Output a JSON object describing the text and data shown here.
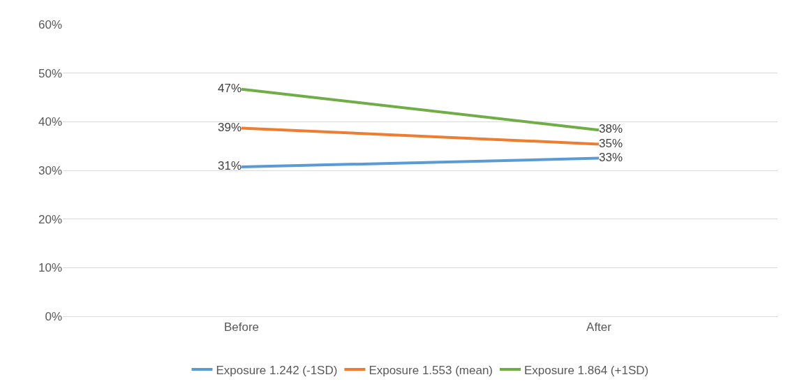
{
  "chart_data": {
    "type": "line",
    "categories": [
      "Before",
      "After"
    ],
    "series": [
      {
        "name": "Exposure 1.242 (-1SD)",
        "color": "#5b9bd5",
        "values": [
          30.7,
          32.5
        ],
        "value_labels": [
          "31%",
          "33%"
        ]
      },
      {
        "name": "Exposure 1.553 (mean)",
        "color": "#ed7d31",
        "values": [
          38.7,
          35.4
        ],
        "value_labels": [
          "39%",
          "35%"
        ]
      },
      {
        "name": "Exposure 1.864 (+1SD)",
        "color": "#70ad47",
        "values": [
          46.7,
          38.3
        ],
        "value_labels": [
          "47%",
          "38%"
        ]
      }
    ],
    "ylim": [
      0,
      60
    ],
    "yticks": [
      {
        "value": 0,
        "label": "0%"
      },
      {
        "value": 10,
        "label": "10%"
      },
      {
        "value": 20,
        "label": "20%"
      },
      {
        "value": 30,
        "label": "30%"
      },
      {
        "value": 40,
        "label": "40%"
      },
      {
        "value": 50,
        "label": "50%"
      },
      {
        "value": 60,
        "label": "60%"
      }
    ],
    "grid": "y",
    "legend": "bottom",
    "marker": "none",
    "line_style": "solid"
  }
}
